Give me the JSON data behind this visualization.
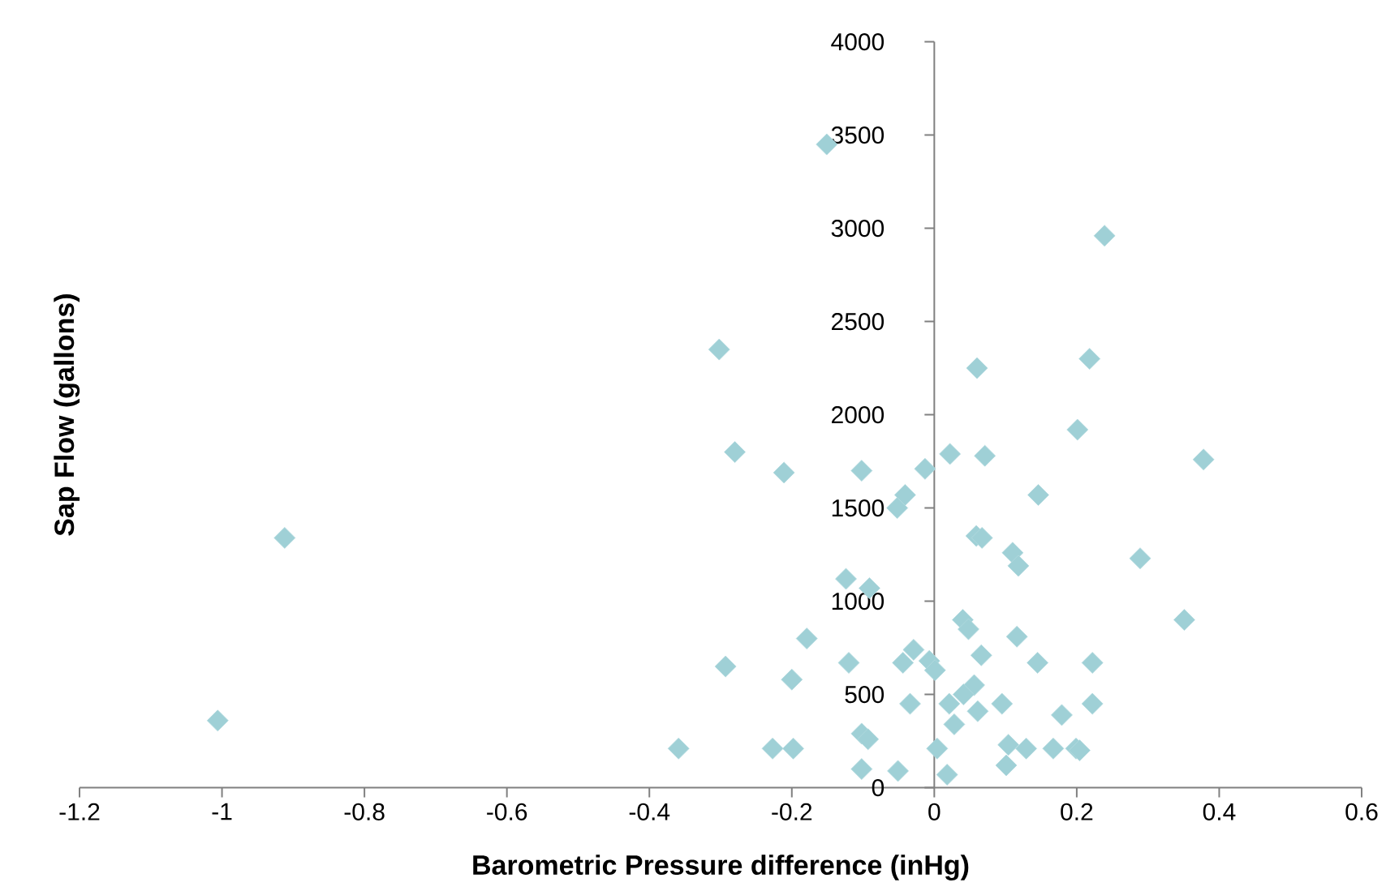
{
  "chart_data": {
    "type": "scatter",
    "xlabel": "Barometric Pressure difference (inHg)",
    "ylabel": "Sap Flow (gallons)",
    "xlim": [
      -1.2,
      0.6
    ],
    "ylim": [
      0,
      4000
    ],
    "xticks": [
      -1.2,
      -1,
      -0.8,
      -0.6,
      -0.4,
      -0.2,
      0,
      0.2,
      0.4,
      0.6
    ],
    "yticks": [
      0,
      500,
      1000,
      1500,
      2000,
      2500,
      3000,
      3500,
      4000
    ],
    "marker": "diamond",
    "series": [
      {
        "color": "#9fd0d6",
        "x": [
          -0.151,
          0.239,
          -0.302,
          0.06,
          0.218,
          0.201,
          -0.28,
          0.022,
          0.071,
          0.378,
          -0.211,
          -0.102,
          -0.013,
          -0.041,
          0.146,
          -0.052,
          -0.912,
          0.059,
          0.067,
          0.11,
          0.118,
          0.289,
          -0.124,
          -0.091,
          0.351,
          0.04,
          0.048,
          -0.179,
          0.116,
          -0.029,
          0.066,
          -0.293,
          -0.12,
          -0.044,
          -0.007,
          0.001,
          0.145,
          0.222,
          -0.2,
          0.056,
          0.041,
          -0.034,
          0.021,
          0.061,
          0.095,
          0.222,
          0.179,
          0.028,
          -1.006,
          -0.102,
          -0.093,
          -0.359,
          -0.227,
          -0.198,
          0.004,
          0.104,
          0.129,
          0.167,
          0.199,
          0.204,
          0.101,
          -0.102,
          -0.051,
          0.018
        ],
        "values": [
          3450,
          2960,
          2350,
          2250,
          2300,
          1920,
          1800,
          1790,
          1780,
          1760,
          1690,
          1700,
          1710,
          1570,
          1570,
          1500,
          1340,
          1350,
          1340,
          1260,
          1190,
          1230,
          1120,
          1070,
          900,
          900,
          850,
          800,
          810,
          740,
          710,
          650,
          670,
          670,
          680,
          630,
          670,
          670,
          580,
          550,
          500,
          450,
          450,
          410,
          450,
          450,
          390,
          340,
          360,
          290,
          260,
          210,
          210,
          210,
          210,
          230,
          210,
          210,
          210,
          200,
          120,
          100,
          90,
          70
        ]
      }
    ]
  }
}
